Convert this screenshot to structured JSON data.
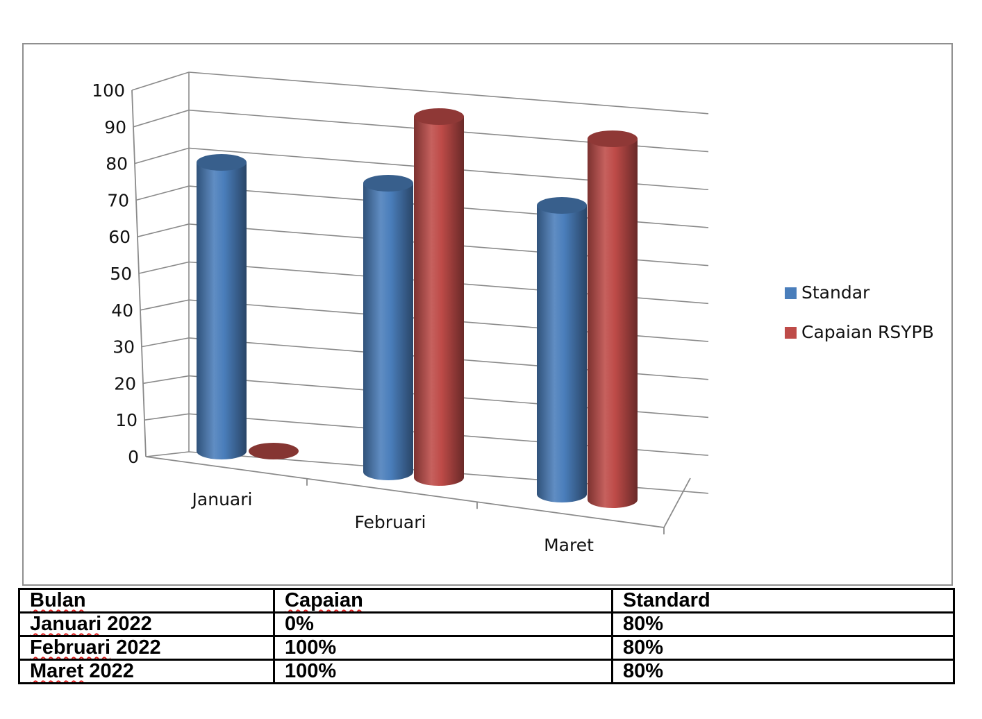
{
  "chart_data": {
    "type": "bar",
    "style": "3d-cylinder",
    "categories": [
      "Januari",
      "Februari",
      "Maret"
    ],
    "series": [
      {
        "name": "Standar",
        "color": "#4a7ebb",
        "values": [
          80,
          80,
          80
        ]
      },
      {
        "name": "Capaian RSYPB",
        "color": "#be4b48",
        "values": [
          0,
          100,
          100
        ]
      }
    ],
    "y_ticks": [
      "0",
      "10",
      "20",
      "30",
      "40",
      "50",
      "60",
      "70",
      "80",
      "90",
      "100"
    ],
    "ylim": [
      0,
      100
    ],
    "grid": true,
    "legend": "right"
  },
  "table": {
    "headers": [
      "Bulan",
      "Capaian",
      "Standard"
    ],
    "rows": [
      {
        "bulan": "Januari",
        "tahun": "2022",
        "capaian": "0%",
        "standard": "80%"
      },
      {
        "bulan": "Februari",
        "tahun": "2022",
        "capaian": "100%",
        "standard": "80%"
      },
      {
        "bulan": "Maret",
        "tahun": "2022",
        "capaian": "100%",
        "standard": "80%"
      }
    ]
  }
}
